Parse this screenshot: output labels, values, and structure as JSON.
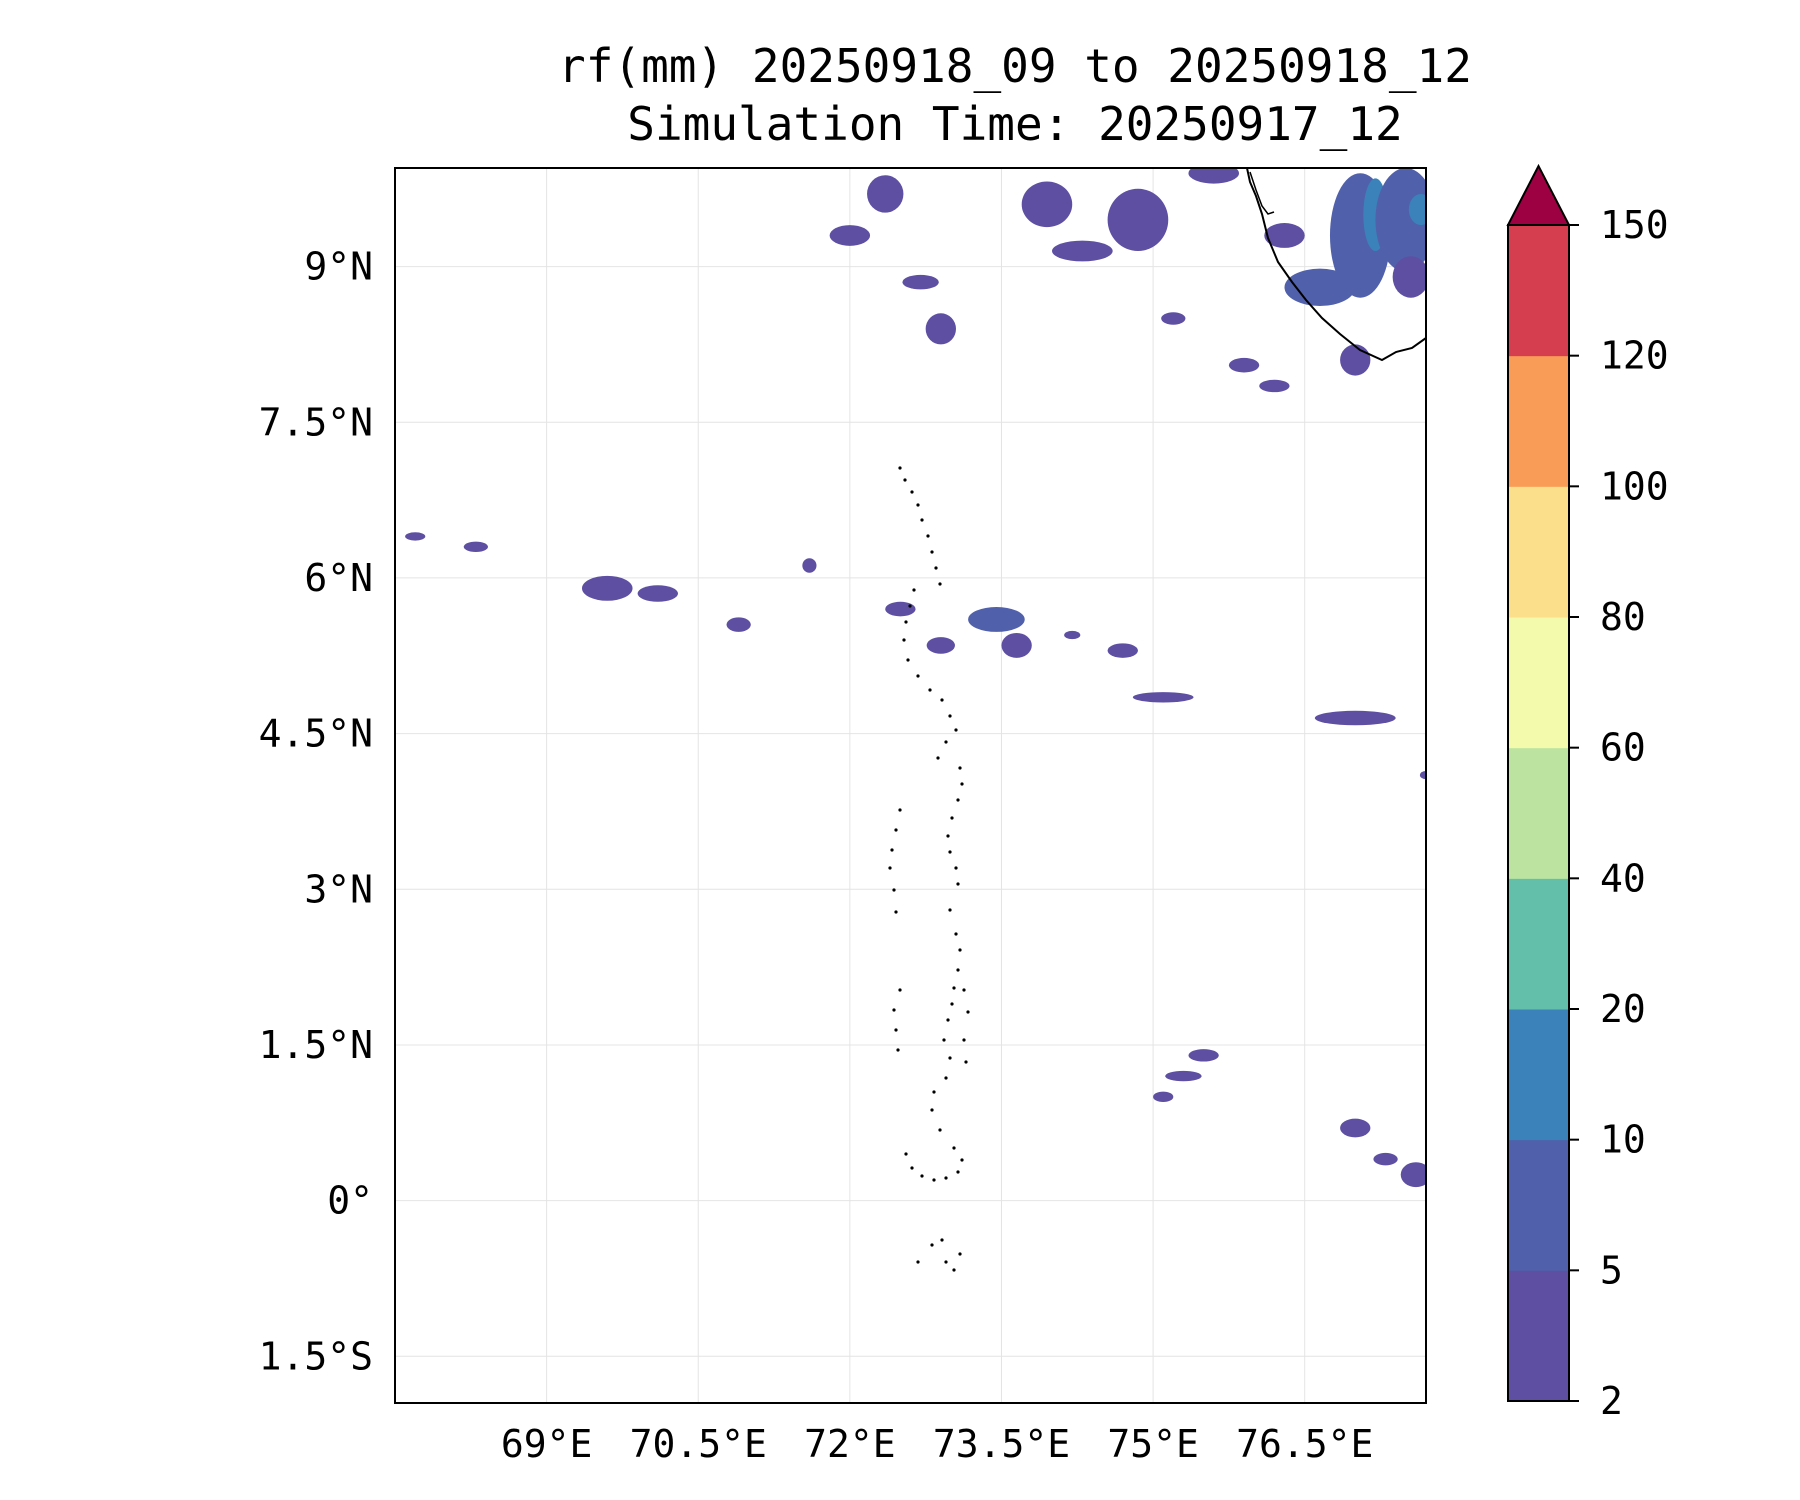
{
  "title": {
    "line1": "rf(mm) 20250918_09 to 20250918_12",
    "line2": "Simulation Time: 20250917_12"
  },
  "map": {
    "lon_range": [
      67.5,
      77.7
    ],
    "lat_range": [
      -1.95,
      9.95
    ],
    "xtick_values": [
      69,
      70.5,
      72,
      73.5,
      75,
      76.5
    ],
    "xtick_labels": [
      "69°E",
      "70.5°E",
      "72°E",
      "73.5°E",
      "75°E",
      "76.5°E"
    ],
    "ytick_values": [
      9,
      7.5,
      6,
      4.5,
      3,
      1.5,
      0,
      -1.5
    ],
    "ytick_labels": [
      "9°N",
      "7.5°N",
      "6°N",
      "4.5°N",
      "3°N",
      "1.5°N",
      "0°",
      "1.5°S"
    ],
    "gridlines": true,
    "precipitation_cells": [
      {
        "lon": 69.6,
        "lat": 5.9,
        "rx": 0.25,
        "ry": 0.12,
        "level": 0
      },
      {
        "lon": 70.1,
        "lat": 5.85,
        "rx": 0.2,
        "ry": 0.08,
        "level": 0
      },
      {
        "lon": 70.9,
        "lat": 5.55,
        "rx": 0.12,
        "ry": 0.07,
        "level": 0
      },
      {
        "lon": 68.3,
        "lat": 6.3,
        "rx": 0.12,
        "ry": 0.05,
        "level": 0
      },
      {
        "lon": 67.7,
        "lat": 6.4,
        "rx": 0.1,
        "ry": 0.04,
        "level": 0
      },
      {
        "lon": 71.6,
        "lat": 6.12,
        "rx": 0.07,
        "ry": 0.07,
        "level": 0
      },
      {
        "lon": 72.5,
        "lat": 5.7,
        "rx": 0.15,
        "ry": 0.07,
        "level": 0
      },
      {
        "lon": 72.9,
        "lat": 5.35,
        "rx": 0.14,
        "ry": 0.08,
        "level": 0
      },
      {
        "lon": 73.45,
        "lat": 5.6,
        "rx": 0.28,
        "ry": 0.12,
        "level": 1
      },
      {
        "lon": 73.65,
        "lat": 5.35,
        "rx": 0.15,
        "ry": 0.12,
        "level": 0
      },
      {
        "lon": 74.2,
        "lat": 5.45,
        "rx": 0.08,
        "ry": 0.04,
        "level": 0
      },
      {
        "lon": 74.7,
        "lat": 5.3,
        "rx": 0.15,
        "ry": 0.07,
        "level": 0
      },
      {
        "lon": 75.1,
        "lat": 4.85,
        "rx": 0.3,
        "ry": 0.05,
        "level": 0
      },
      {
        "lon": 77.0,
        "lat": 4.65,
        "rx": 0.4,
        "ry": 0.07,
        "level": 0
      },
      {
        "lon": 77.7,
        "lat": 4.1,
        "rx": 0.06,
        "ry": 0.04,
        "level": 0
      },
      {
        "lon": 75.5,
        "lat": 1.4,
        "rx": 0.15,
        "ry": 0.06,
        "level": 0
      },
      {
        "lon": 75.3,
        "lat": 1.2,
        "rx": 0.18,
        "ry": 0.05,
        "level": 0
      },
      {
        "lon": 75.1,
        "lat": 1.0,
        "rx": 0.1,
        "ry": 0.05,
        "level": 0
      },
      {
        "lon": 77.0,
        "lat": 0.7,
        "rx": 0.15,
        "ry": 0.09,
        "level": 0
      },
      {
        "lon": 77.3,
        "lat": 0.4,
        "rx": 0.12,
        "ry": 0.06,
        "level": 0
      },
      {
        "lon": 77.6,
        "lat": 0.25,
        "rx": 0.15,
        "ry": 0.12,
        "level": 0
      },
      {
        "lon": 72.35,
        "lat": 9.7,
        "rx": 0.18,
        "ry": 0.18,
        "level": 0
      },
      {
        "lon": 72.0,
        "lat": 9.3,
        "rx": 0.2,
        "ry": 0.1,
        "level": 0
      },
      {
        "lon": 72.7,
        "lat": 8.85,
        "rx": 0.18,
        "ry": 0.07,
        "level": 0
      },
      {
        "lon": 72.9,
        "lat": 8.4,
        "rx": 0.15,
        "ry": 0.15,
        "level": 0
      },
      {
        "lon": 73.95,
        "lat": 9.6,
        "rx": 0.25,
        "ry": 0.22,
        "level": 0
      },
      {
        "lon": 74.3,
        "lat": 9.15,
        "rx": 0.3,
        "ry": 0.1,
        "level": 0
      },
      {
        "lon": 74.85,
        "lat": 9.45,
        "rx": 0.3,
        "ry": 0.3,
        "level": 0
      },
      {
        "lon": 75.6,
        "lat": 9.9,
        "rx": 0.25,
        "ry": 0.1,
        "level": 0
      },
      {
        "lon": 76.3,
        "lat": 9.3,
        "rx": 0.2,
        "ry": 0.12,
        "level": 0
      },
      {
        "lon": 75.2,
        "lat": 8.5,
        "rx": 0.12,
        "ry": 0.06,
        "level": 0
      },
      {
        "lon": 75.9,
        "lat": 8.05,
        "rx": 0.15,
        "ry": 0.07,
        "level": 0
      },
      {
        "lon": 76.2,
        "lat": 7.85,
        "rx": 0.15,
        "ry": 0.06,
        "level": 0
      },
      {
        "lon": 76.65,
        "lat": 8.8,
        "rx": 0.35,
        "ry": 0.18,
        "level": 1
      },
      {
        "lon": 77.05,
        "lat": 9.3,
        "rx": 0.3,
        "ry": 0.6,
        "level": 1
      },
      {
        "lon": 77.2,
        "lat": 9.5,
        "rx": 0.12,
        "ry": 0.35,
        "level": 2
      },
      {
        "lon": 77.5,
        "lat": 9.45,
        "rx": 0.3,
        "ry": 0.5,
        "level": 1
      },
      {
        "lon": 77.65,
        "lat": 9.55,
        "rx": 0.12,
        "ry": 0.15,
        "level": 2
      },
      {
        "lon": 77.55,
        "lat": 8.9,
        "rx": 0.18,
        "ry": 0.2,
        "level": 0
      },
      {
        "lon": 77.0,
        "lat": 8.1,
        "rx": 0.15,
        "ry": 0.15,
        "level": 0
      }
    ]
  },
  "colorbar": {
    "levels": [
      2,
      5,
      10,
      20,
      40,
      60,
      80,
      100,
      120,
      150
    ],
    "tick_labels": [
      "2",
      "5",
      "10",
      "20",
      "40",
      "60",
      "80",
      "100",
      "120",
      "150"
    ],
    "colors": [
      "#5e4fa2",
      "#5060ab",
      "#3a82b9",
      "#63bfaa",
      "#bce4a0",
      "#f3faac",
      "#fcdf8a",
      "#f99c58",
      "#d53e4f"
    ],
    "extend_color": "#9e0142"
  },
  "style": {
    "gridline_color": "#e4e4e4",
    "coast_color": "#000000"
  }
}
